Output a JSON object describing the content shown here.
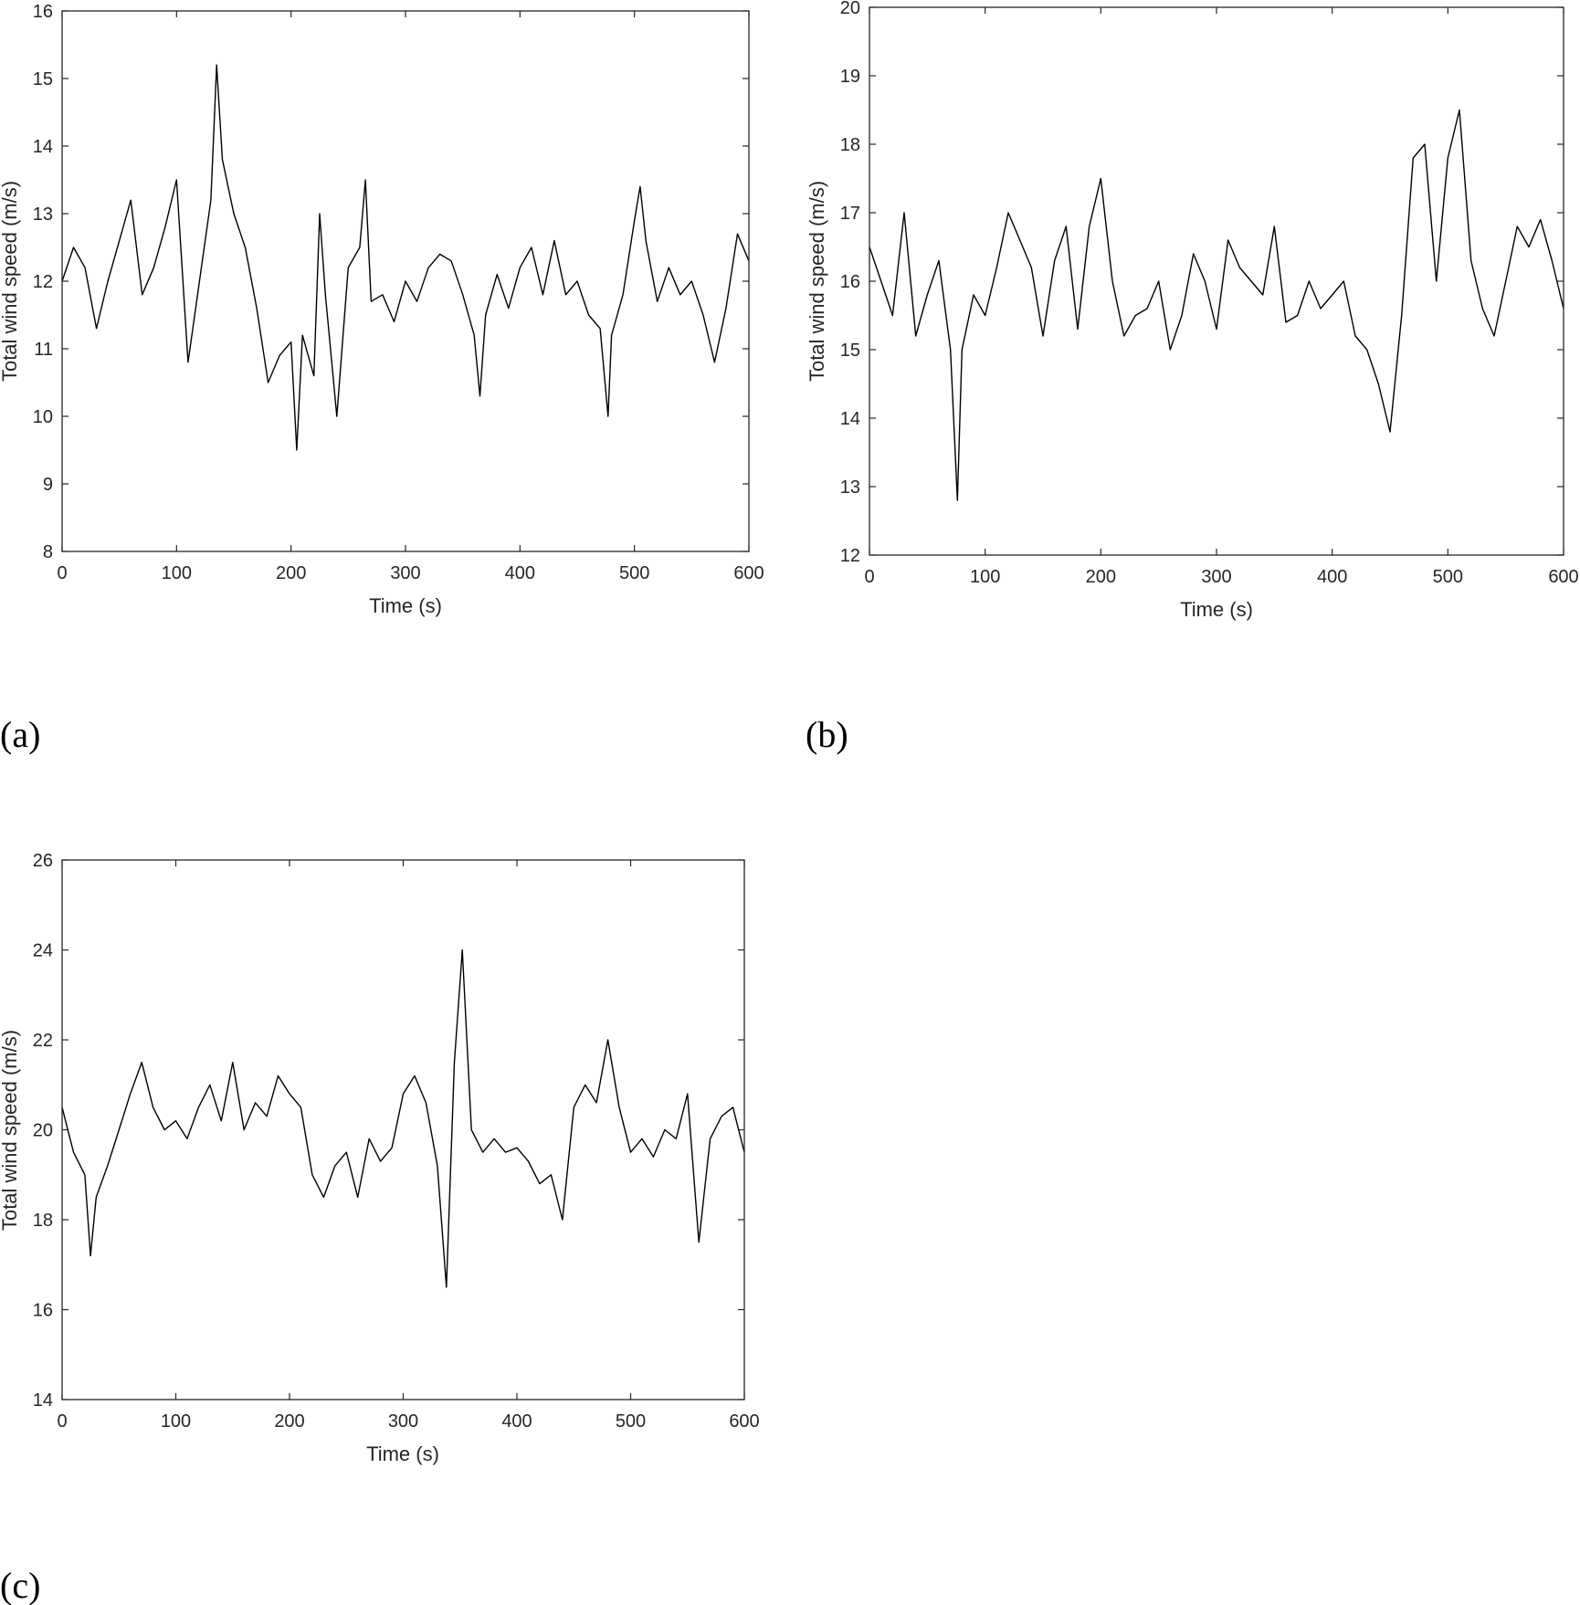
{
  "figure": {
    "panel_labels": [
      "(a)",
      "(b)",
      "(c)"
    ],
    "line_color": "#000000"
  },
  "chart_data": [
    {
      "type": "line",
      "panel": "(a)",
      "xlabel": "Time (s)",
      "ylabel": "Total wind speed (m/s)",
      "xlim": [
        0,
        600
      ],
      "ylim": [
        8,
        16
      ],
      "xticks": [
        0,
        100,
        200,
        300,
        400,
        500,
        600
      ],
      "yticks": [
        8,
        9,
        10,
        11,
        12,
        13,
        14,
        15,
        16
      ],
      "grid": false,
      "series": [
        {
          "x": [
            0,
            10,
            20,
            30,
            40,
            50,
            60,
            70,
            80,
            90,
            100,
            110,
            120,
            130,
            135,
            140,
            150,
            160,
            170,
            180,
            190,
            200,
            205,
            210,
            220,
            225,
            230,
            240,
            250,
            260,
            265,
            270,
            280,
            290,
            300,
            310,
            320,
            330,
            340,
            350,
            360,
            365,
            370,
            380,
            390,
            400,
            410,
            420,
            430,
            440,
            450,
            460,
            470,
            477,
            480,
            490,
            500,
            505,
            510,
            520,
            530,
            540,
            550,
            560,
            570,
            580,
            590,
            600
          ],
          "y": [
            12.0,
            12.5,
            12.2,
            11.3,
            12.0,
            12.6,
            13.2,
            11.8,
            12.2,
            12.8,
            13.5,
            10.8,
            12.0,
            13.2,
            15.2,
            13.8,
            13.0,
            12.5,
            11.6,
            10.5,
            10.9,
            11.1,
            9.5,
            11.2,
            10.6,
            13.0,
            11.8,
            10.0,
            12.2,
            12.5,
            13.5,
            11.7,
            11.8,
            11.4,
            12.0,
            11.7,
            12.2,
            12.4,
            12.3,
            11.8,
            11.2,
            10.3,
            11.5,
            12.1,
            11.6,
            12.2,
            12.5,
            11.8,
            12.6,
            11.8,
            12.0,
            11.5,
            11.3,
            10.0,
            11.2,
            11.8,
            12.9,
            13.4,
            12.6,
            11.7,
            12.2,
            11.8,
            12.0,
            11.5,
            10.8,
            11.6,
            12.7,
            12.3
          ]
        }
      ]
    },
    {
      "type": "line",
      "panel": "(b)",
      "xlabel": "Time (s)",
      "ylabel": "Total wind speed (m/s)",
      "xlim": [
        0,
        600
      ],
      "ylim": [
        12,
        20
      ],
      "xticks": [
        0,
        100,
        200,
        300,
        400,
        500,
        600
      ],
      "yticks": [
        12,
        13,
        14,
        15,
        16,
        17,
        18,
        19,
        20
      ],
      "grid": false,
      "series": [
        {
          "x": [
            0,
            10,
            20,
            30,
            40,
            50,
            60,
            70,
            76,
            80,
            90,
            100,
            110,
            120,
            130,
            140,
            150,
            160,
            170,
            180,
            190,
            200,
            210,
            220,
            230,
            240,
            250,
            260,
            270,
            280,
            290,
            300,
            310,
            320,
            330,
            340,
            350,
            360,
            370,
            380,
            390,
            400,
            410,
            420,
            430,
            440,
            450,
            460,
            470,
            480,
            490,
            500,
            510,
            520,
            530,
            540,
            550,
            560,
            570,
            580,
            590,
            600
          ],
          "y": [
            16.5,
            16.0,
            15.5,
            17.0,
            15.2,
            15.8,
            16.3,
            15.0,
            12.8,
            15.0,
            15.8,
            15.5,
            16.2,
            17.0,
            16.6,
            16.2,
            15.2,
            16.3,
            16.8,
            15.3,
            16.8,
            17.5,
            16.0,
            15.2,
            15.5,
            15.6,
            16.0,
            15.0,
            15.5,
            16.4,
            16.0,
            15.3,
            16.6,
            16.2,
            16.0,
            15.8,
            16.8,
            15.4,
            15.5,
            16.0,
            15.6,
            15.8,
            16.0,
            15.2,
            15.0,
            14.5,
            13.8,
            15.5,
            17.8,
            18.0,
            16.0,
            17.8,
            18.5,
            16.3,
            15.6,
            15.2,
            16.0,
            16.8,
            16.5,
            16.9,
            16.3,
            15.6
          ]
        }
      ]
    },
    {
      "type": "line",
      "panel": "(c)",
      "xlabel": "Time (s)",
      "ylabel": "Total wind speed (m/s)",
      "xlim": [
        0,
        600
      ],
      "ylim": [
        14,
        26
      ],
      "xticks": [
        0,
        100,
        200,
        300,
        400,
        500,
        600
      ],
      "yticks": [
        14,
        16,
        18,
        20,
        22,
        24,
        26
      ],
      "grid": false,
      "series": [
        {
          "x": [
            0,
            10,
            20,
            25,
            30,
            40,
            50,
            60,
            70,
            80,
            90,
            100,
            110,
            120,
            130,
            140,
            150,
            160,
            170,
            180,
            190,
            200,
            210,
            220,
            230,
            240,
            250,
            260,
            270,
            280,
            290,
            300,
            310,
            320,
            330,
            338,
            345,
            352,
            360,
            370,
            380,
            390,
            400,
            410,
            420,
            430,
            440,
            450,
            460,
            470,
            480,
            490,
            500,
            510,
            520,
            530,
            540,
            550,
            560,
            570,
            580,
            590,
            600
          ],
          "y": [
            20.5,
            19.5,
            19.0,
            17.2,
            18.5,
            19.2,
            20.0,
            20.8,
            21.5,
            20.5,
            20.0,
            20.2,
            19.8,
            20.5,
            21.0,
            20.2,
            21.5,
            20.0,
            20.6,
            20.3,
            21.2,
            20.8,
            20.5,
            19.0,
            18.5,
            19.2,
            19.5,
            18.5,
            19.8,
            19.3,
            19.6,
            20.8,
            21.2,
            20.6,
            19.2,
            16.5,
            21.5,
            24.0,
            20.0,
            19.5,
            19.8,
            19.5,
            19.6,
            19.3,
            18.8,
            19.0,
            18.0,
            20.5,
            21.0,
            20.6,
            22.0,
            20.5,
            19.5,
            19.8,
            19.4,
            20.0,
            19.8,
            20.8,
            17.5,
            19.8,
            20.3,
            20.5,
            19.5
          ]
        }
      ]
    }
  ]
}
